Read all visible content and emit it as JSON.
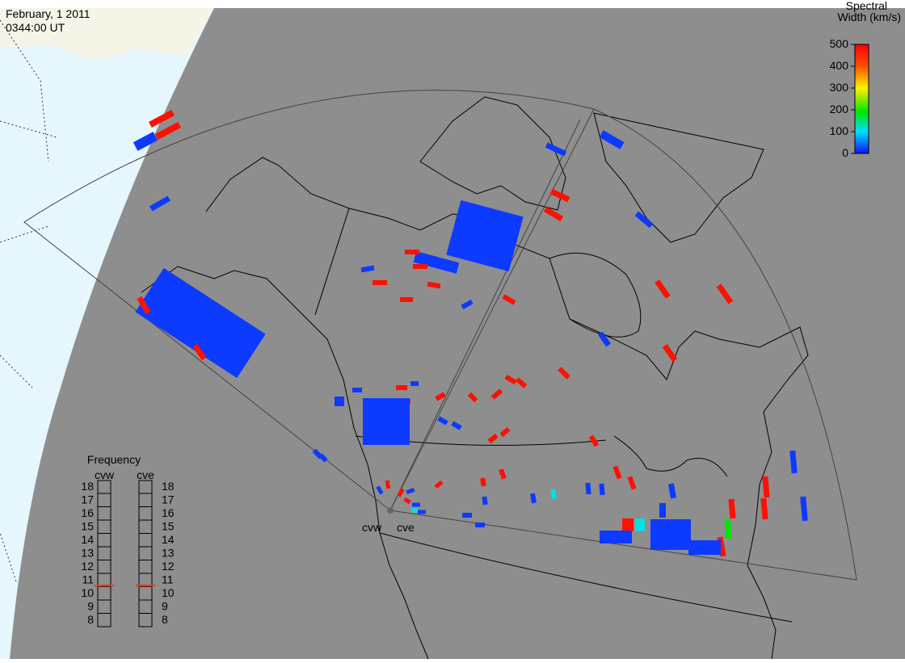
{
  "header": {
    "date": "February, 1 2011",
    "time": "0344:00 UT"
  },
  "colorbar": {
    "title_lines": [
      "Spectral",
      "Width (km/s)"
    ],
    "lim": [
      0,
      500
    ],
    "ticks": [
      0,
      100,
      200,
      300,
      400,
      500
    ]
  },
  "frequency_panel": {
    "title": "Frequency",
    "lim": [
      8,
      18
    ],
    "ticks": [
      8,
      9,
      10,
      11,
      12,
      13,
      14,
      15,
      16,
      17,
      18
    ],
    "radars": [
      {
        "name": "cvw",
        "value": 10.6
      },
      {
        "name": "cve",
        "value": 10.6
      }
    ]
  },
  "radar_labels": [
    "cvw",
    "cve"
  ],
  "echoes": {
    "spectral_width": [
      480,
      480,
      20,
      20,
      20,
      480,
      480,
      20,
      20,
      480,
      480,
      480,
      480,
      480,
      480,
      480,
      480,
      480,
      480,
      480,
      480,
      480,
      480,
      480,
      480,
      480,
      480,
      480,
      480,
      480,
      480,
      480,
      480,
      480,
      480,
      480,
      480,
      480,
      480,
      480,
      480,
      20,
      20,
      20,
      20,
      20,
      20,
      20,
      20,
      20,
      20,
      20,
      20,
      20,
      20,
      20,
      20,
      20,
      20,
      20,
      20,
      20,
      20,
      20,
      20,
      20,
      110,
      110,
      190,
      20,
      20,
      480,
      20,
      20,
      480,
      20,
      20,
      110,
      480
    ]
  }
}
